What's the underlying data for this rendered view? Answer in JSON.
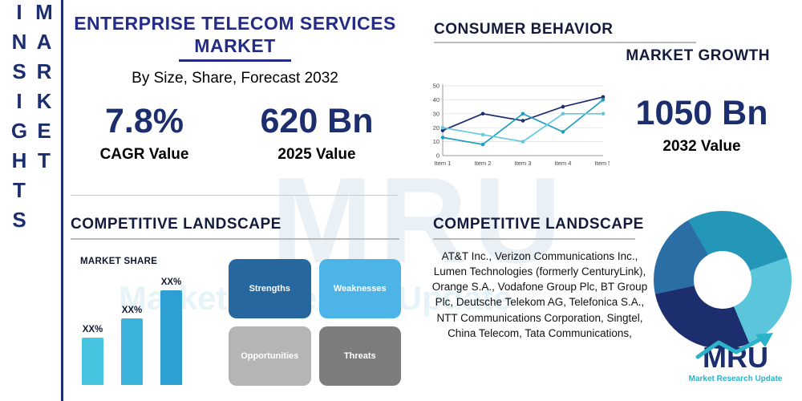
{
  "sidebar": {
    "label": "MARKET INSIGHTS"
  },
  "header": {
    "title_line1": "ENTERPRISE TELECOM SERVICES",
    "title_line2": "MARKET",
    "subtitle": "By Size, Share, Forecast 2032"
  },
  "stats": {
    "cagr": {
      "value": "7.8%",
      "label": "CAGR Value"
    },
    "v2025": {
      "value": "620 Bn",
      "label": "2025 Value"
    },
    "v2032": {
      "value": "1050 Bn",
      "label": "2032 Value"
    }
  },
  "headings": {
    "consumer_behavior": "CONSUMER BEHAVIOR",
    "market_growth": "MARKET GROWTH",
    "competitive_landscape_left": "COMPETITIVE LANDSCAPE",
    "competitive_landscape_right": "COMPETITIVE LANDSCAPE"
  },
  "swot": {
    "items": [
      {
        "label": "Strengths",
        "color": "#27679f"
      },
      {
        "label": "Weaknesses",
        "color": "#4db4e7"
      },
      {
        "label": "Opportunities",
        "color": "#b5b5b5"
      },
      {
        "label": "Threats",
        "color": "#7c7c7c"
      }
    ]
  },
  "companies": {
    "text": "AT&T Inc., Verizon Communications Inc., Lumen Technologies (formerly CenturyLink), Orange S.A., Vodafone Group Plc, BT Group Plc, Deutsche Telekom AG, Telefonica S.A., NTT Communications Corporation, Singtel, China Telecom, Tata Communications,"
  },
  "logo": {
    "text": "MRU",
    "subtext": "Market Research Update"
  },
  "watermark": {
    "main": "MRU",
    "sub": "Market Research Update"
  },
  "colors": {
    "navy": "#1c2e6e",
    "teal": "#2bb3c9",
    "accent_blue": "#2d9fd3"
  },
  "chart_data": [
    {
      "type": "line",
      "title": "CONSUMER BEHAVIOR",
      "categories": [
        "Item 1",
        "Item 2",
        "Item 3",
        "Item 4",
        "Item 5"
      ],
      "series": [
        {
          "name": "navy-series",
          "color": "#1c2e6e",
          "values": [
            18,
            30,
            25,
            35,
            42
          ]
        },
        {
          "name": "teal-series",
          "color": "#1f9fc0",
          "values": [
            13,
            8,
            30,
            17,
            40
          ]
        },
        {
          "name": "light-teal-series",
          "color": "#63c9dd",
          "values": [
            20,
            15,
            10,
            30,
            30
          ]
        }
      ],
      "ylim": [
        0,
        50
      ],
      "yticks": [
        0,
        10,
        20,
        30,
        40,
        50
      ],
      "grid": true,
      "legend": "none"
    },
    {
      "type": "bar",
      "title": "MARKET SHARE",
      "categories": [
        "XX%",
        "XX%",
        "XX%"
      ],
      "values": [
        25,
        35,
        50
      ],
      "colors": [
        "#47c4df",
        "#3cb3da",
        "#2d9fd3"
      ],
      "xlabel": "",
      "ylabel": ""
    },
    {
      "type": "pie",
      "title": "COMPETITIVE LANDSCAPE",
      "donut": true,
      "slices": [
        {
          "label": "segment-1",
          "value": 28,
          "color": "#2496b8"
        },
        {
          "label": "segment-2",
          "value": 24,
          "color": "#5ac5db"
        },
        {
          "label": "segment-3",
          "value": 28,
          "color": "#1c2e6e"
        },
        {
          "label": "segment-4",
          "value": 20,
          "color": "#2b6ea6"
        }
      ]
    }
  ]
}
